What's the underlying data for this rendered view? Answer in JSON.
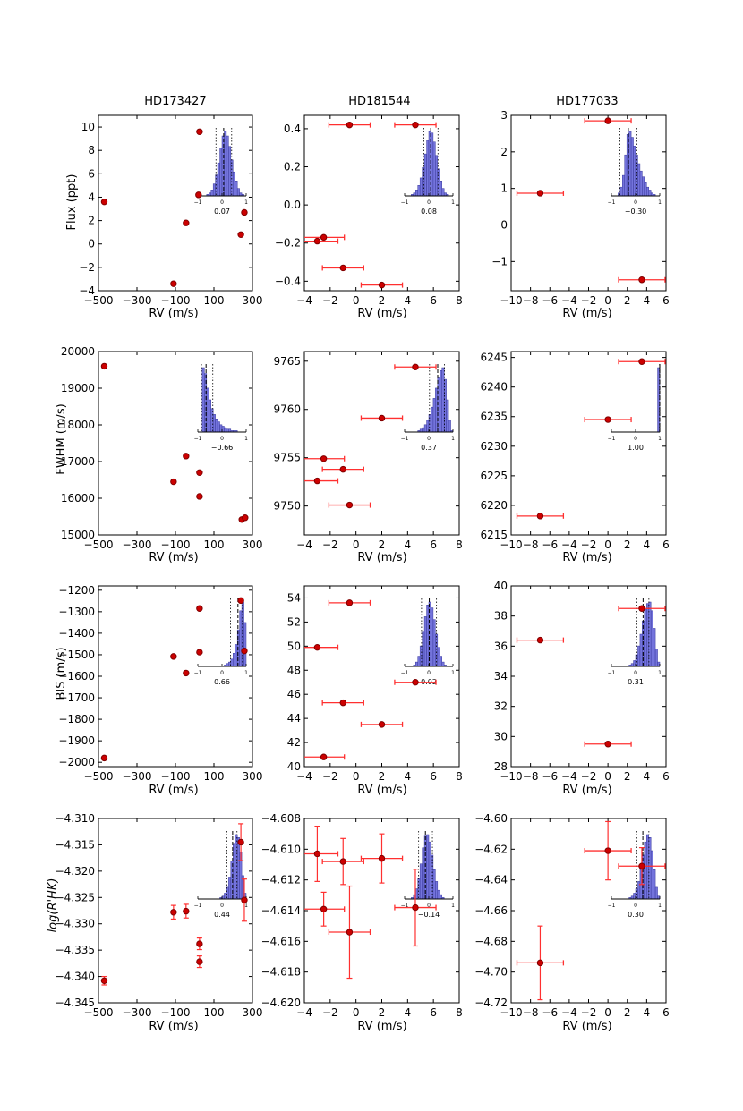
{
  "figure": {
    "column_titles": [
      "HD173427",
      "HD181544",
      "HD177033"
    ],
    "row_ylabels": [
      "Flux (ppt)",
      "FWHM (m/s)",
      "BIS (m/s)",
      "log(R'HK)"
    ],
    "xlabel": "RV (m/s)"
  },
  "colors": {
    "point": "#cc0000",
    "point_edge": "#800000",
    "errorbar": "#ff3030",
    "hist": "#7474dc",
    "hist_edge": "#3a3a9e",
    "dashed": "#000000"
  },
  "chart_data": [
    {
      "type": "scatter",
      "row": 0,
      "col": 0,
      "xlim": [
        -500,
        300
      ],
      "xticks": [
        -500,
        -300,
        -100,
        100,
        300
      ],
      "xtick_labels": [
        "−500",
        "−300",
        "−100",
        "100",
        "300"
      ],
      "ylim": [
        -4,
        11
      ],
      "yticks": [
        -4,
        -2,
        0,
        2,
        4,
        6,
        8,
        10
      ],
      "ytick_labels": [
        "−4",
        "−2",
        "0",
        "2",
        "4",
        "6",
        "8",
        "10"
      ],
      "points": [
        {
          "x": -470,
          "y": 3.6
        },
        {
          "x": -110,
          "y": -3.4
        },
        {
          "x": -45,
          "y": 1.8
        },
        {
          "x": 25,
          "y": 9.6
        },
        {
          "x": 20,
          "y": 4.2
        },
        {
          "x": 240,
          "y": 0.8
        },
        {
          "x": 258,
          "y": 2.7
        }
      ],
      "xerr": 0,
      "yerr": 0,
      "inset": {
        "hist": [
          0,
          0,
          0,
          0,
          1,
          2,
          4,
          8,
          14,
          22,
          32,
          40,
          43,
          40,
          33,
          24,
          16,
          10,
          5,
          2,
          1,
          0
        ],
        "median": 0.07,
        "dotted": [
          -0.25,
          0.4
        ],
        "label": "0.07",
        "ticks": [
          "−1",
          "0",
          "1"
        ]
      }
    },
    {
      "type": "scatter",
      "row": 0,
      "col": 1,
      "xlim": [
        -4,
        8
      ],
      "xticks": [
        -4,
        -2,
        0,
        2,
        4,
        6,
        8
      ],
      "xtick_labels": [
        "−4",
        "−2",
        "0",
        "2",
        "4",
        "6",
        "8"
      ],
      "ylim": [
        -0.45,
        0.47
      ],
      "yticks": [
        -0.4,
        -0.2,
        0,
        0.2,
        0.4
      ],
      "ytick_labels": [
        "−0.4",
        "−0.2",
        "0.0",
        "0.2",
        "0.4"
      ],
      "points": [
        {
          "x": -3,
          "y": -0.19
        },
        {
          "x": -2.5,
          "y": -0.17
        },
        {
          "x": -1,
          "y": -0.33
        },
        {
          "x": -0.5,
          "y": 0.42
        },
        {
          "x": 2,
          "y": -0.42
        },
        {
          "x": 4.6,
          "y": 0.42
        }
      ],
      "xerr": 1.6,
      "yerr": 0,
      "inset": {
        "hist": [
          0,
          0,
          0,
          1,
          2,
          4,
          7,
          12,
          19,
          28,
          37,
          43,
          42,
          36,
          27,
          18,
          10,
          5,
          2,
          1,
          0,
          0
        ],
        "median": 0.08,
        "dotted": [
          -0.2,
          0.38
        ],
        "label": "0.08",
        "ticks": [
          "−1",
          "0",
          "1"
        ]
      }
    },
    {
      "type": "scatter",
      "row": 0,
      "col": 2,
      "xlim": [
        -10,
        6
      ],
      "xticks": [
        -10,
        -8,
        -6,
        -4,
        -2,
        0,
        2,
        4,
        6
      ],
      "xtick_labels": [
        "−10",
        "−8",
        "−6",
        "−4",
        "−2",
        "0",
        "2",
        "4",
        "6"
      ],
      "ylim": [
        -1.8,
        3
      ],
      "yticks": [
        -1,
        0,
        1,
        2,
        3
      ],
      "ytick_labels": [
        "−1",
        "0",
        "1",
        "2",
        "3"
      ],
      "points": [
        {
          "x": -7,
          "y": 0.87
        },
        {
          "x": 0,
          "y": 2.85
        },
        {
          "x": 3.5,
          "y": -1.5
        }
      ],
      "xerr": 2.4,
      "yerr": 0,
      "inset": {
        "hist": [
          0,
          0,
          0,
          2,
          6,
          14,
          28,
          42,
          44,
          40,
          34,
          28,
          22,
          17,
          13,
          9,
          6,
          4,
          2,
          1,
          0,
          0
        ],
        "median": -0.3,
        "dotted": [
          -0.65,
          0.05
        ],
        "label": "−0.30",
        "ticks": [
          "−1",
          "0",
          "1"
        ]
      }
    },
    {
      "type": "scatter",
      "row": 1,
      "col": 0,
      "xlim": [
        -500,
        300
      ],
      "xticks": [
        -500,
        -300,
        -100,
        100,
        300
      ],
      "xtick_labels": [
        "−500",
        "−300",
        "−100",
        "100",
        "300"
      ],
      "ylim": [
        15000,
        20000
      ],
      "yticks": [
        15000,
        16000,
        17000,
        18000,
        19000,
        20000
      ],
      "ytick_labels": [
        "15000",
        "16000",
        "17000",
        "18000",
        "19000",
        "20000"
      ],
      "points": [
        {
          "x": -470,
          "y": 19600
        },
        {
          "x": -110,
          "y": 16450
        },
        {
          "x": -45,
          "y": 17150
        },
        {
          "x": 25,
          "y": 16700
        },
        {
          "x": 25,
          "y": 16050
        },
        {
          "x": 245,
          "y": 15420
        },
        {
          "x": 262,
          "y": 15470
        }
      ],
      "xerr": 0,
      "yerr": 0,
      "inset": {
        "hist": [
          0,
          0,
          44,
          40,
          30,
          22,
          16,
          12,
          9,
          7,
          5,
          4,
          3,
          2,
          2,
          1,
          1,
          1,
          0,
          0,
          0,
          0
        ],
        "median": -0.66,
        "dotted": [
          -0.85,
          -0.38
        ],
        "label": "−0.66",
        "ticks": [
          "−1",
          "0",
          "1"
        ]
      }
    },
    {
      "type": "scatter",
      "row": 1,
      "col": 1,
      "xlim": [
        -4,
        8
      ],
      "xticks": [
        -4,
        -2,
        0,
        2,
        4,
        6,
        8
      ],
      "xtick_labels": [
        "−4",
        "−2",
        "0",
        "2",
        "4",
        "6",
        "8"
      ],
      "ylim": [
        9747,
        9766
      ],
      "yticks": [
        9750,
        9755,
        9760,
        9765
      ],
      "ytick_labels": [
        "9750",
        "9755",
        "9760",
        "9765"
      ],
      "points": [
        {
          "x": -3,
          "y": 9752.6
        },
        {
          "x": -2.5,
          "y": 9754.9
        },
        {
          "x": -1,
          "y": 9753.8
        },
        {
          "x": -0.5,
          "y": 9750.1
        },
        {
          "x": 2,
          "y": 9759.1
        },
        {
          "x": 4.6,
          "y": 9764.4
        }
      ],
      "xerr": 1.6,
      "yerr": 0,
      "inset": {
        "hist": [
          0,
          0,
          0,
          0,
          0,
          0,
          1,
          2,
          3,
          5,
          8,
          12,
          17,
          23,
          30,
          37,
          42,
          44,
          36,
          22,
          8,
          1
        ],
        "median": 0.37,
        "dotted": [
          0.03,
          0.65
        ],
        "label": "0.37",
        "ticks": [
          "−1",
          "0",
          "1"
        ]
      }
    },
    {
      "type": "scatter",
      "row": 1,
      "col": 2,
      "xlim": [
        -10,
        6
      ],
      "xticks": [
        -10,
        -8,
        -6,
        -4,
        -2,
        0,
        2,
        4,
        6
      ],
      "xtick_labels": [
        "−10",
        "−8",
        "−6",
        "−4",
        "−2",
        "0",
        "2",
        "4",
        "6"
      ],
      "ylim": [
        6215,
        6246
      ],
      "yticks": [
        6215,
        6220,
        6225,
        6230,
        6235,
        6240,
        6245
      ],
      "ytick_labels": [
        "6215",
        "6220",
        "6225",
        "6230",
        "6235",
        "6240",
        "6245"
      ],
      "points": [
        {
          "x": -7,
          "y": 6218.2
        },
        {
          "x": 0,
          "y": 6234.5
        },
        {
          "x": 3.5,
          "y": 6244.3
        }
      ],
      "xerr": 2.4,
      "yerr": 0,
      "inset": {
        "hist": [
          0,
          0,
          0,
          0,
          0,
          0,
          0,
          0,
          0,
          0,
          0,
          0,
          0,
          0,
          0,
          0,
          0,
          0,
          0,
          0,
          0,
          44
        ],
        "median": 1.0,
        "dotted": [
          0.99,
          1.0
        ],
        "label": "1.00",
        "ticks": [
          "−1",
          "0",
          "1"
        ]
      }
    },
    {
      "type": "scatter",
      "row": 2,
      "col": 0,
      "xlim": [
        -500,
        300
      ],
      "xticks": [
        -500,
        -300,
        -100,
        100,
        300
      ],
      "xtick_labels": [
        "−500",
        "−300",
        "−100",
        "100",
        "300"
      ],
      "ylim": [
        -2020,
        -1180
      ],
      "yticks": [
        -2000,
        -1900,
        -1800,
        -1700,
        -1600,
        -1500,
        -1400,
        -1300,
        -1200
      ],
      "ytick_labels": [
        "−2000",
        "−1900",
        "−1800",
        "−1700",
        "−1600",
        "−1500",
        "−1400",
        "−1300",
        "−1200"
      ],
      "points": [
        {
          "x": -470,
          "y": -1980
        },
        {
          "x": -110,
          "y": -1508
        },
        {
          "x": -45,
          "y": -1585
        },
        {
          "x": 25,
          "y": -1488
        },
        {
          "x": 25,
          "y": -1285
        },
        {
          "x": 240,
          "y": -1248
        },
        {
          "x": 258,
          "y": -1482
        }
      ],
      "xerr": 0,
      "yerr": 0,
      "inset": {
        "hist": [
          0,
          0,
          0,
          0,
          0,
          0,
          0,
          0,
          0,
          0,
          0,
          0,
          1,
          2,
          3,
          5,
          9,
          15,
          25,
          38,
          44,
          30
        ],
        "median": 0.66,
        "dotted": [
          0.35,
          0.85
        ],
        "label": "0.66",
        "ticks": [
          "−1",
          "0",
          "1"
        ]
      }
    },
    {
      "type": "scatter",
      "row": 2,
      "col": 1,
      "xlim": [
        -4,
        8
      ],
      "xticks": [
        -4,
        -2,
        0,
        2,
        4,
        6,
        8
      ],
      "xtick_labels": [
        "−4",
        "−2",
        "0",
        "2",
        "4",
        "6",
        "8"
      ],
      "ylim": [
        40,
        55
      ],
      "yticks": [
        40,
        42,
        44,
        46,
        48,
        50,
        52,
        54
      ],
      "ytick_labels": [
        "40",
        "42",
        "44",
        "46",
        "48",
        "50",
        "52",
        "54"
      ],
      "points": [
        {
          "x": -3,
          "y": 49.9
        },
        {
          "x": -2.5,
          "y": 40.8
        },
        {
          "x": -1,
          "y": 45.3
        },
        {
          "x": -0.5,
          "y": 53.6
        },
        {
          "x": 2,
          "y": 43.5
        },
        {
          "x": 4.6,
          "y": 47
        }
      ],
      "xerr": 1.6,
      "yerr": 0,
      "inset": {
        "hist": [
          0,
          0,
          0,
          0,
          1,
          3,
          7,
          14,
          24,
          34,
          42,
          44,
          40,
          32,
          22,
          13,
          7,
          3,
          1,
          0,
          0,
          0
        ],
        "median": 0.02,
        "dotted": [
          -0.3,
          0.32
        ],
        "label": "0.02",
        "ticks": [
          "−1",
          "0",
          "1"
        ]
      }
    },
    {
      "type": "scatter",
      "row": 2,
      "col": 2,
      "xlim": [
        -10,
        6
      ],
      "xticks": [
        -10,
        -8,
        -6,
        -4,
        -2,
        0,
        2,
        4,
        6
      ],
      "xtick_labels": [
        "−10",
        "−8",
        "−6",
        "−4",
        "−2",
        "0",
        "2",
        "4",
        "6"
      ],
      "ylim": [
        28,
        40
      ],
      "yticks": [
        28,
        30,
        32,
        34,
        36,
        38,
        40
      ],
      "ytick_labels": [
        "28",
        "30",
        "32",
        "34",
        "36",
        "38",
        "40"
      ],
      "points": [
        {
          "x": -7,
          "y": 36.4
        },
        {
          "x": 0,
          "y": 29.5
        },
        {
          "x": 3.5,
          "y": 38.5
        }
      ],
      "xerr": 2.4,
      "yerr": 0,
      "inset": {
        "hist": [
          0,
          0,
          0,
          0,
          0,
          0,
          0,
          0,
          1,
          2,
          4,
          8,
          14,
          22,
          31,
          39,
          43,
          44,
          38,
          26,
          12,
          3
        ],
        "median": 0.31,
        "dotted": [
          0.05,
          0.55
        ],
        "label": "0.31",
        "ticks": [
          "−1",
          "0",
          "1"
        ]
      }
    },
    {
      "type": "scatter",
      "row": 3,
      "col": 0,
      "xlim": [
        -500,
        300
      ],
      "xticks": [
        -500,
        -300,
        -100,
        100,
        300
      ],
      "xtick_labels": [
        "−500",
        "−300",
        "−100",
        "100",
        "300"
      ],
      "ylim": [
        -4.345,
        -4.31
      ],
      "yticks": [
        -4.345,
        -4.34,
        -4.335,
        -4.33,
        -4.325,
        -4.32,
        -4.315,
        -4.31
      ],
      "ytick_labels": [
        "−4.345",
        "−4.340",
        "−4.335",
        "−4.330",
        "−4.325",
        "−4.320",
        "−4.315",
        "−4.310"
      ],
      "points": [
        {
          "x": -470,
          "y": -4.3408,
          "ey": 0.0008
        },
        {
          "x": -110,
          "y": -4.3278,
          "ey": 0.0013
        },
        {
          "x": -45,
          "y": -4.3276,
          "ey": 0.0013
        },
        {
          "x": 25,
          "y": -4.3338,
          "ey": 0.0011
        },
        {
          "x": 25,
          "y": -4.3372,
          "ey": 0.0011
        },
        {
          "x": 240,
          "y": -4.3145,
          "ey": 0.0035
        },
        {
          "x": 258,
          "y": -4.3255,
          "ey": 0.004
        }
      ],
      "xerr": 0,
      "inset": {
        "hist": [
          0,
          0,
          0,
          0,
          0,
          0,
          0,
          0,
          0,
          0,
          1,
          2,
          4,
          8,
          15,
          26,
          38,
          44,
          42,
          32,
          16,
          4
        ],
        "median": 0.44,
        "dotted": [
          0.2,
          0.62
        ],
        "label": "0.44",
        "ticks": [
          "−1",
          "0",
          "1"
        ]
      }
    },
    {
      "type": "scatter",
      "row": 3,
      "col": 1,
      "xlim": [
        -4,
        8
      ],
      "xticks": [
        -4,
        -2,
        0,
        2,
        4,
        6,
        8
      ],
      "xtick_labels": [
        "−4",
        "−2",
        "0",
        "2",
        "4",
        "6",
        "8"
      ],
      "ylim": [
        -4.62,
        -4.608
      ],
      "yticks": [
        -4.62,
        -4.618,
        -4.616,
        -4.614,
        -4.612,
        -4.61,
        -4.608
      ],
      "ytick_labels": [
        "−4.620",
        "−4.618",
        "−4.616",
        "−4.614",
        "−4.612",
        "−4.610",
        "−4.608"
      ],
      "points": [
        {
          "x": -3,
          "y": -4.6103,
          "ey": 0.0018
        },
        {
          "x": -2.5,
          "y": -4.6139,
          "ey": 0.0011
        },
        {
          "x": -1,
          "y": -4.6108,
          "ey": 0.0015
        },
        {
          "x": -0.5,
          "y": -4.6154,
          "ey": 0.003
        },
        {
          "x": 2,
          "y": -4.6106,
          "ey": 0.0016
        },
        {
          "x": 4.6,
          "y": -4.6138,
          "ey": 0.0025
        }
      ],
      "xerr": 1.6,
      "inset": {
        "hist": [
          0,
          0,
          0,
          1,
          3,
          7,
          14,
          24,
          35,
          43,
          44,
          39,
          30,
          20,
          12,
          6,
          3,
          1,
          0,
          0,
          0,
          0
        ],
        "median": -0.14,
        "dotted": [
          -0.42,
          0.15
        ],
        "label": "−0.14",
        "ticks": [
          "−1",
          "0",
          "1"
        ]
      }
    },
    {
      "type": "scatter",
      "row": 3,
      "col": 2,
      "xlim": [
        -10,
        6
      ],
      "xticks": [
        -10,
        -8,
        -6,
        -4,
        -2,
        0,
        2,
        4,
        6
      ],
      "xtick_labels": [
        "−10",
        "−8",
        "−6",
        "−4",
        "−2",
        "0",
        "2",
        "4",
        "6"
      ],
      "ylim": [
        -4.72,
        -4.6
      ],
      "yticks": [
        -4.72,
        -4.7,
        -4.68,
        -4.66,
        -4.64,
        -4.62,
        -4.6
      ],
      "ytick_labels": [
        "−4.72",
        "−4.70",
        "−4.68",
        "−4.66",
        "−4.64",
        "−4.62",
        "−4.60"
      ],
      "points": [
        {
          "x": -7,
          "y": -4.694,
          "ey": 0.024
        },
        {
          "x": 0,
          "y": -4.621,
          "ey": 0.019
        },
        {
          "x": 3.5,
          "y": -4.631,
          "ey": 0.012
        }
      ],
      "xerr": 2.4,
      "inset": {
        "hist": [
          0,
          0,
          0,
          0,
          0,
          0,
          0,
          0,
          1,
          2,
          4,
          7,
          12,
          20,
          30,
          39,
          44,
          42,
          33,
          20,
          8,
          2
        ],
        "median": 0.3,
        "dotted": [
          0.05,
          0.55
        ],
        "label": "0.30",
        "ticks": [
          "−1",
          "0",
          "1"
        ]
      }
    }
  ]
}
